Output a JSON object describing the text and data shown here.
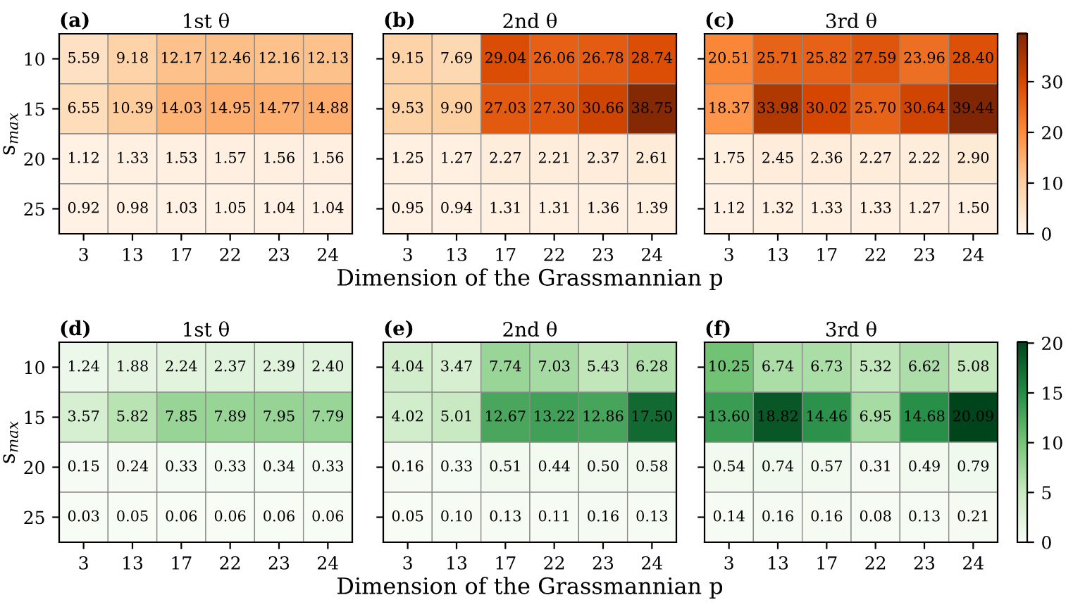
{
  "chart_data": [
    {
      "type": "heatmap",
      "title": "1st θ",
      "annotations": [
        "(a)"
      ],
      "ylabel": "s$_{max}$",
      "categories": [
        "3",
        "13",
        "17",
        "22",
        "23",
        "24"
      ],
      "y_categories": [
        "10",
        "15",
        "20",
        "25"
      ],
      "colors": [
        "#fff5eb",
        "#fdd0a2",
        "#fd8d3c",
        "#d94801",
        "#7f2704"
      ],
      "cells": [
        [
          5.59,
          9.18,
          12.17,
          12.46,
          12.16,
          12.13
        ],
        [
          6.55,
          10.39,
          14.03,
          14.95,
          14.77,
          14.88
        ],
        [
          1.12,
          1.33,
          1.53,
          1.57,
          1.56,
          1.56
        ],
        [
          0.92,
          0.98,
          1.03,
          1.05,
          1.04,
          1.04
        ]
      ],
      "cell_labels": [
        [
          "5.59",
          "9.18",
          "12.17",
          "12.46",
          "12.16",
          "12.13"
        ],
        [
          "6.55",
          "10.39",
          "14.03",
          "14.95",
          "14.77",
          "14.88"
        ],
        [
          "1.12",
          "1.33",
          "1.53",
          "1.57",
          "1.56",
          "1.56"
        ],
        [
          "0.92",
          "0.98",
          "1.03",
          "1.05",
          "1.04",
          "1.04"
        ]
      ]
    },
    {
      "type": "heatmap",
      "title": "2nd θ",
      "annotations": [
        "(b)"
      ],
      "xlabel": "Dimension of the Grassmannian p",
      "categories": [
        "3",
        "13",
        "17",
        "22",
        "23",
        "24"
      ],
      "y_categories": [
        "10",
        "15",
        "20",
        "25"
      ],
      "colors": [
        "#fff5eb",
        "#fdd0a2",
        "#fd8d3c",
        "#d94801",
        "#7f2704"
      ],
      "tick_labels": "x",
      "cells": [
        [
          9.15,
          7.69,
          29.04,
          26.06,
          26.78,
          28.74
        ],
        [
          9.53,
          9.9,
          27.03,
          27.3,
          30.66,
          38.75
        ],
        [
          1.25,
          1.27,
          2.27,
          2.21,
          2.37,
          2.61
        ],
        [
          0.95,
          0.94,
          1.31,
          1.31,
          1.36,
          1.39
        ]
      ],
      "cell_labels": [
        [
          "9.15",
          "7.69",
          "29.04",
          "26.06",
          "26.78",
          "28.74"
        ],
        [
          "9.53",
          "9.90",
          "27.03",
          "27.30",
          "30.66",
          "38.75"
        ],
        [
          "1.25",
          "1.27",
          "2.27",
          "2.21",
          "2.37",
          "2.61"
        ],
        [
          "0.95",
          "0.94",
          "1.31",
          "1.31",
          "1.36",
          "1.39"
        ]
      ]
    },
    {
      "type": "heatmap",
      "title": "3rd θ",
      "annotations": [
        "(c)"
      ],
      "categories": [
        "3",
        "13",
        "17",
        "22",
        "23",
        "24"
      ],
      "y_categories": [
        "10",
        "15",
        "20",
        "25"
      ],
      "colors": [
        "#fff5eb",
        "#fdd0a2",
        "#fd8d3c",
        "#d94801",
        "#7f2704"
      ],
      "clim": [
        0,
        39.44
      ],
      "cticks": [
        0,
        10,
        20,
        30
      ],
      "tick_labels": "x",
      "cells": [
        [
          20.51,
          25.71,
          25.82,
          27.59,
          23.96,
          28.4
        ],
        [
          18.37,
          33.98,
          30.02,
          25.7,
          30.64,
          39.44
        ],
        [
          1.75,
          2.45,
          2.36,
          2.27,
          2.22,
          2.9
        ],
        [
          1.12,
          1.32,
          1.33,
          1.33,
          1.27,
          1.5
        ]
      ],
      "cell_labels": [
        [
          "20.51",
          "25.71",
          "25.82",
          "27.59",
          "23.96",
          "28.40"
        ],
        [
          "18.37",
          "33.98",
          "30.02",
          "25.70",
          "30.64",
          "39.44"
        ],
        [
          "1.75",
          "2.45",
          "2.36",
          "2.27",
          "2.22",
          "2.90"
        ],
        [
          "1.12",
          "1.32",
          "1.33",
          "1.33",
          "1.27",
          "1.50"
        ]
      ]
    },
    {
      "type": "heatmap",
      "title": "1st θ",
      "annotations": [
        "(d)"
      ],
      "ylabel": "s$_{max}$",
      "categories": [
        "3",
        "13",
        "17",
        "22",
        "23",
        "24"
      ],
      "y_categories": [
        "10",
        "15",
        "20",
        "25"
      ],
      "colors": [
        "#f7fcf5",
        "#c7e9c0",
        "#74c476",
        "#238b45",
        "#00441b"
      ],
      "cells": [
        [
          1.24,
          1.88,
          2.24,
          2.37,
          2.39,
          2.4
        ],
        [
          3.57,
          5.82,
          7.85,
          7.89,
          7.95,
          7.79
        ],
        [
          0.15,
          0.24,
          0.33,
          0.33,
          0.34,
          0.33
        ],
        [
          0.03,
          0.05,
          0.06,
          0.06,
          0.06,
          0.06
        ]
      ],
      "cell_labels": [
        [
          "1.24",
          "1.88",
          "2.24",
          "2.37",
          "2.39",
          "2.40"
        ],
        [
          "3.57",
          "5.82",
          "7.85",
          "7.89",
          "7.95",
          "7.79"
        ],
        [
          "0.15",
          "0.24",
          "0.33",
          "0.33",
          "0.34",
          "0.33"
        ],
        [
          "0.03",
          "0.05",
          "0.06",
          "0.06",
          "0.06",
          "0.06"
        ]
      ]
    },
    {
      "type": "heatmap",
      "title": "2nd θ",
      "annotations": [
        "(e)"
      ],
      "xlabel": "Dimension of the Grassmannian p",
      "categories": [
        "3",
        "13",
        "17",
        "22",
        "23",
        "24"
      ],
      "y_categories": [
        "10",
        "15",
        "20",
        "25"
      ],
      "colors": [
        "#f7fcf5",
        "#c7e9c0",
        "#74c476",
        "#238b45",
        "#00441b"
      ],
      "tick_labels": "x",
      "cells": [
        [
          4.04,
          3.47,
          7.74,
          7.03,
          5.43,
          6.28
        ],
        [
          4.02,
          5.01,
          12.67,
          13.22,
          12.86,
          17.5
        ],
        [
          0.16,
          0.33,
          0.51,
          0.44,
          0.5,
          0.58
        ],
        [
          0.05,
          0.1,
          0.13,
          0.11,
          0.16,
          0.13
        ]
      ],
      "cell_labels": [
        [
          "4.04",
          "3.47",
          "7.74",
          "7.03",
          "5.43",
          "6.28"
        ],
        [
          "4.02",
          "5.01",
          "12.67",
          "13.22",
          "12.86",
          "17.50"
        ],
        [
          "0.16",
          "0.33",
          "0.51",
          "0.44",
          "0.50",
          "0.58"
        ],
        [
          "0.05",
          "0.10",
          "0.13",
          "0.11",
          "0.16",
          "0.13"
        ]
      ]
    },
    {
      "type": "heatmap",
      "title": "3rd θ",
      "annotations": [
        "(f)"
      ],
      "categories": [
        "3",
        "13",
        "17",
        "22",
        "23",
        "24"
      ],
      "y_categories": [
        "10",
        "15",
        "20",
        "25"
      ],
      "colors": [
        "#f7fcf5",
        "#c7e9c0",
        "#74c476",
        "#238b45",
        "#00441b"
      ],
      "clim": [
        0,
        20.09
      ],
      "cticks": [
        0,
        5,
        10,
        15,
        20
      ],
      "tick_labels": "x",
      "cells": [
        [
          10.25,
          6.74,
          6.73,
          5.32,
          6.62,
          5.08
        ],
        [
          13.6,
          18.82,
          14.46,
          6.95,
          14.68,
          20.09
        ],
        [
          0.54,
          0.74,
          0.57,
          0.31,
          0.49,
          0.79
        ],
        [
          0.14,
          0.16,
          0.16,
          0.08,
          0.13,
          0.21
        ]
      ],
      "cell_labels": [
        [
          "10.25",
          "6.74",
          "6.73",
          "5.32",
          "6.62",
          "5.08"
        ],
        [
          "13.60",
          "18.82",
          "14.46",
          "6.95",
          "14.68",
          "20.09"
        ],
        [
          "0.54",
          "0.74",
          "0.57",
          "0.31",
          "0.49",
          "0.79"
        ],
        [
          "0.14",
          "0.16",
          "0.16",
          "0.08",
          "0.13",
          "0.21"
        ]
      ]
    }
  ]
}
